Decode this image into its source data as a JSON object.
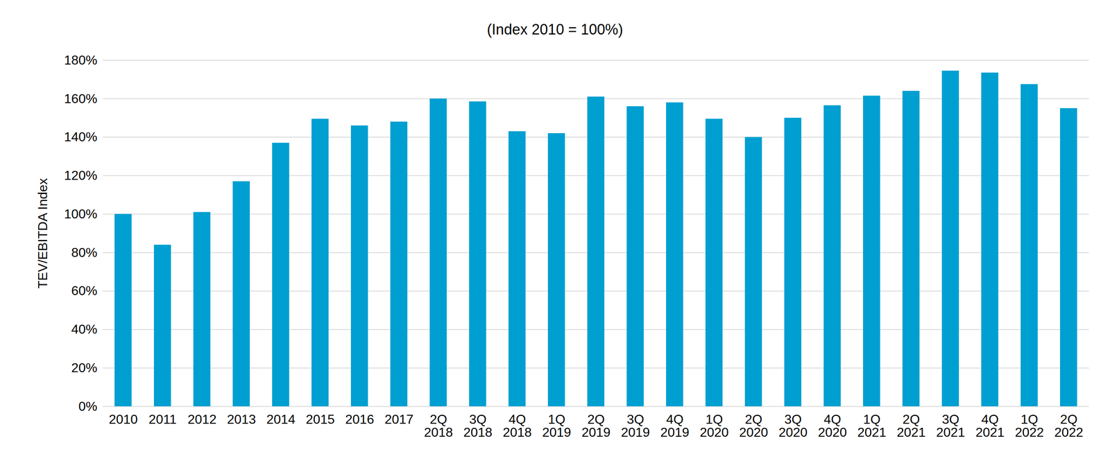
{
  "chart_data": {
    "type": "bar",
    "title": "(Index 2010 = 100%)",
    "ylabel": "TEV/EBITDA Index",
    "categories": [
      "2010",
      "2011",
      "2012",
      "2013",
      "2014",
      "2015",
      "2016",
      "2017",
      "2Q 2018",
      "3Q 2018",
      "4Q 2018",
      "1Q 2019",
      "2Q 2019",
      "3Q 2019",
      "4Q 2019",
      "1Q 2020",
      "2Q 2020",
      "3Q 2020",
      "4Q 2020",
      "1Q 2021",
      "2Q 2021",
      "3Q 2021",
      "4Q 2021",
      "1Q 2022",
      "2Q 2022"
    ],
    "values": [
      100,
      84,
      101,
      117,
      137,
      149.5,
      146,
      148,
      160,
      158.5,
      143,
      142,
      161,
      156,
      158,
      149.5,
      140,
      150,
      156.5,
      161.5,
      164,
      174.5,
      173.5,
      167.5,
      155
    ],
    "color": "#009fd1",
    "ylim": [
      0,
      180
    ],
    "yticks": [
      {
        "value": 0,
        "label": "0%"
      },
      {
        "value": 20,
        "label": "20%"
      },
      {
        "value": 40,
        "label": "40%"
      },
      {
        "value": 60,
        "label": "60%"
      },
      {
        "value": 80,
        "label": "80%"
      },
      {
        "value": 100,
        "label": "100%"
      },
      {
        "value": 120,
        "label": "120%"
      },
      {
        "value": 140,
        "label": "140%"
      },
      {
        "value": 160,
        "label": "160%"
      },
      {
        "value": 180,
        "label": "180%"
      }
    ],
    "grid": true
  }
}
